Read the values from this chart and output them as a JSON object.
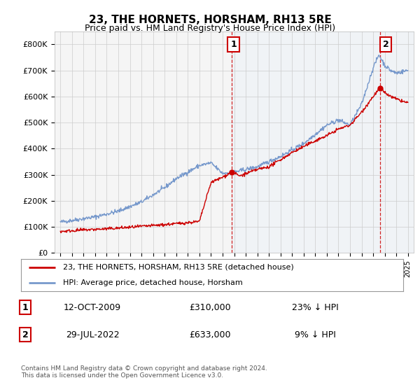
{
  "title": "23, THE HORNETS, HORSHAM, RH13 5RE",
  "subtitle": "Price paid vs. HM Land Registry's House Price Index (HPI)",
  "ylabel_ticks": [
    "£0",
    "£100K",
    "£200K",
    "£300K",
    "£400K",
    "£500K",
    "£600K",
    "£700K",
    "£800K"
  ],
  "ylim": [
    0,
    850000
  ],
  "xlim_start": 1994.5,
  "xlim_end": 2025.5,
  "hpi_color": "#7799cc",
  "price_color": "#cc0000",
  "shade_color": "#ddeeff",
  "vline_color": "#cc0000",
  "marker1_x": 2009.79,
  "marker1_y": 310000,
  "marker2_x": 2022.58,
  "marker2_y": 633000,
  "legend_line1": "23, THE HORNETS, HORSHAM, RH13 5RE (detached house)",
  "legend_line2": "HPI: Average price, detached house, Horsham",
  "annotation1_date": "12-OCT-2009",
  "annotation1_price": "£310,000",
  "annotation1_hpi": "23% ↓ HPI",
  "annotation2_date": "29-JUL-2022",
  "annotation2_price": "£633,000",
  "annotation2_hpi": "9% ↓ HPI",
  "footer": "Contains HM Land Registry data © Crown copyright and database right 2024.\nThis data is licensed under the Open Government Licence v3.0.",
  "background_color": "#ffffff",
  "plot_bg_color": "#f5f5f5"
}
